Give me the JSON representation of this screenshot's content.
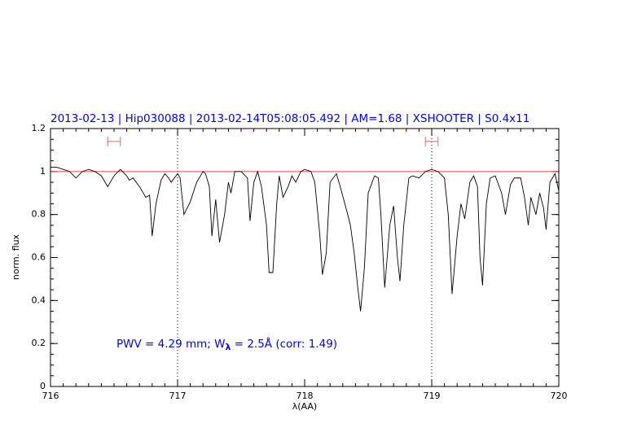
{
  "chart_data": {
    "type": "line",
    "title": "2013-02-13 | Hip030088 | 2013-02-14T05:08:05.492 | AM=1.68 | XSHOOTER | S0.4x11",
    "xlabel": "λ(AA)",
    "ylabel": "norm. flux",
    "annotation": [
      "PWV = 4.29 mm; W",
      "λ",
      " = 2.5Å (corr: 1.49)"
    ],
    "xlim": [
      716,
      720
    ],
    "ylim": [
      0,
      1.2
    ],
    "xticks": [
      716,
      717,
      718,
      719,
      720
    ],
    "yticks": [
      0,
      0.2,
      0.4,
      0.6,
      0.8,
      1,
      1.2
    ],
    "vlines": [
      717,
      719
    ],
    "hline": 1,
    "hline_color": "#ff4040",
    "intervals": [
      {
        "x": [
          716.45,
          716.55
        ],
        "y": 1.14
      },
      {
        "x": [
          718.95,
          719.05
        ],
        "y": 1.14
      }
    ],
    "interval_color": "#ff6060",
    "x": [
      716.0,
      716.05,
      716.1,
      716.15,
      716.2,
      716.25,
      716.3,
      716.35,
      716.4,
      716.42,
      716.45,
      716.5,
      716.55,
      716.6,
      716.62,
      716.65,
      716.7,
      716.75,
      716.78,
      716.8,
      716.83,
      716.87,
      716.9,
      716.93,
      716.95,
      717.0,
      717.02,
      717.05,
      717.1,
      717.15,
      717.2,
      717.22,
      717.25,
      717.27,
      717.3,
      717.33,
      717.37,
      717.4,
      717.42,
      717.45,
      717.5,
      717.55,
      717.57,
      717.6,
      717.63,
      717.66,
      717.7,
      717.72,
      717.75,
      717.78,
      717.8,
      717.83,
      717.87,
      717.9,
      717.93,
      717.97,
      718.0,
      718.05,
      718.08,
      718.12,
      718.14,
      718.17,
      718.2,
      718.25,
      718.28,
      718.33,
      718.36,
      718.39,
      718.42,
      718.44,
      718.47,
      718.5,
      718.55,
      718.58,
      718.6,
      718.63,
      718.67,
      718.7,
      718.73,
      718.75,
      718.78,
      718.82,
      718.85,
      718.9,
      718.95,
      719.0,
      719.05,
      719.1,
      719.13,
      719.16,
      719.2,
      719.23,
      719.26,
      719.3,
      719.33,
      719.36,
      719.38,
      719.4,
      719.43,
      719.46,
      719.5,
      719.55,
      719.58,
      719.62,
      719.65,
      719.7,
      719.73,
      719.76,
      719.78,
      719.82,
      719.85,
      719.88,
      719.9,
      719.93,
      719.97,
      720.0
    ],
    "series": [
      {
        "color": "#000000",
        "values": [
          1.02,
          1.02,
          1.01,
          1.0,
          0.97,
          1.0,
          1.01,
          1.0,
          0.98,
          0.96,
          0.93,
          0.98,
          1.01,
          0.98,
          0.96,
          0.97,
          0.93,
          0.88,
          0.89,
          0.7,
          0.85,
          0.96,
          0.99,
          0.97,
          0.95,
          0.99,
          0.97,
          0.8,
          0.86,
          0.95,
          1.0,
          0.99,
          0.93,
          0.7,
          0.87,
          0.67,
          0.8,
          0.95,
          0.9,
          1.0,
          1.0,
          0.97,
          0.77,
          0.95,
          1.0,
          0.93,
          0.75,
          0.53,
          0.53,
          0.85,
          0.98,
          0.88,
          0.93,
          0.98,
          0.95,
          1.0,
          1.01,
          1.0,
          0.95,
          0.7,
          0.52,
          0.62,
          0.95,
          0.99,
          0.93,
          0.82,
          0.75,
          0.62,
          0.45,
          0.35,
          0.55,
          0.9,
          0.98,
          0.97,
          0.8,
          0.46,
          0.75,
          0.84,
          0.6,
          0.49,
          0.75,
          0.97,
          0.98,
          0.97,
          1.0,
          1.01,
          1.0,
          0.97,
          0.8,
          0.43,
          0.7,
          0.85,
          0.78,
          0.95,
          0.98,
          0.93,
          0.6,
          0.47,
          0.85,
          0.97,
          0.98,
          0.9,
          0.8,
          0.94,
          0.97,
          0.97,
          0.88,
          0.75,
          0.88,
          0.8,
          0.9,
          0.83,
          0.73,
          0.95,
          0.99,
          0.91
        ]
      }
    ]
  }
}
